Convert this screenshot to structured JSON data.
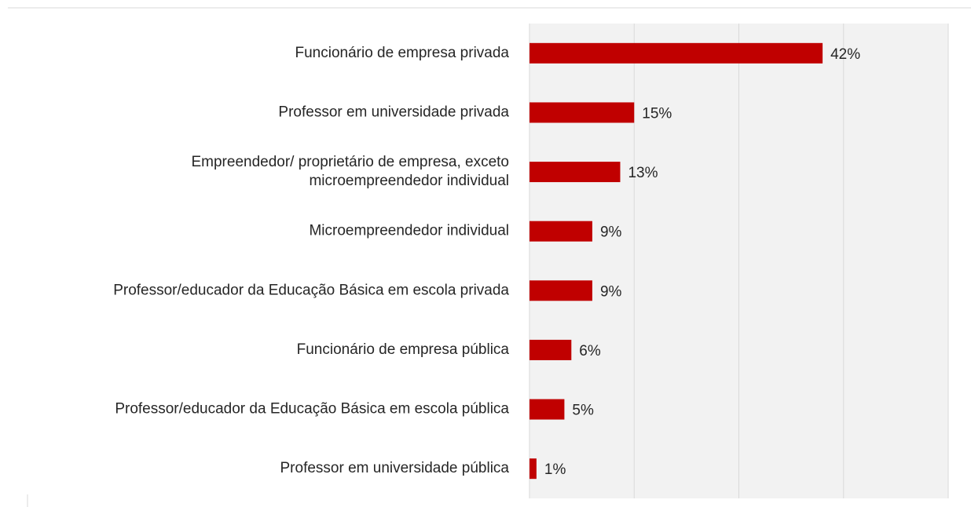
{
  "chart_data": {
    "type": "bar",
    "orientation": "horizontal",
    "categories": [
      "Funcionário de empresa privada",
      "Professor em universidade privada",
      "Empreendedor/ proprietário de empresa, exceto microempreendedor individual",
      "Microempreendedor individual",
      "Professor/educador da Educação Básica em escola privada",
      "Funcionário de empresa pública",
      "Professor/educador da Educação Básica em escola pública",
      "Professor em universidade pública"
    ],
    "values": [
      42,
      15,
      13,
      9,
      9,
      6,
      5,
      1
    ],
    "value_labels": [
      "42%",
      "15%",
      "13%",
      "9%",
      "9%",
      "6%",
      "5%",
      "1%"
    ],
    "color": "#c00000",
    "xlim": [
      0,
      60
    ],
    "xticks": [
      0,
      15,
      30,
      45,
      60
    ],
    "grid": true
  }
}
